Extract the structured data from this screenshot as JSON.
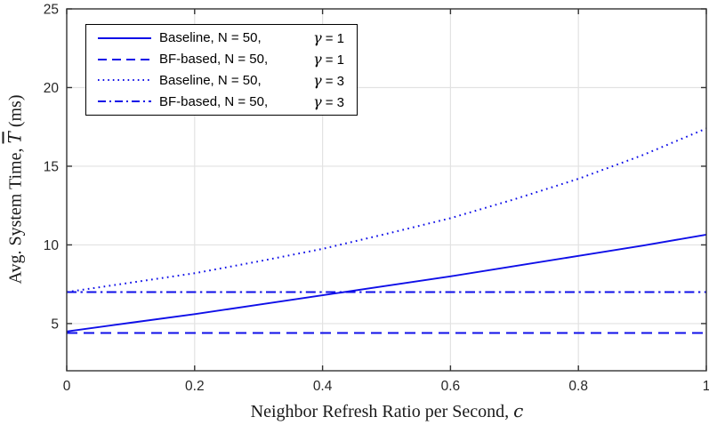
{
  "figure": {
    "background": "#ffffff"
  },
  "colors": {
    "line_blue": "#0f0fe8",
    "grid": "#e2e2e2",
    "axis": "#333333",
    "tick_label": "#262626",
    "legend_border": "#000000"
  },
  "axes": {
    "y_label_prefix": "Avg. System Time, ",
    "y_label_symbol": "T",
    "y_label_suffix": " (ms)",
    "x_label_prefix": "Neighbor Refresh Ratio per Second, ",
    "x_label_symbol": "c"
  },
  "legend": {
    "entries": [
      {
        "name": "Baseline, N = 50,",
        "gamma_symbol": "γ",
        "gamma_rest": "= 1",
        "line_style": "solid"
      },
      {
        "name": "BF-based, N = 50,",
        "gamma_symbol": "γ",
        "gamma_rest": "= 1",
        "line_style": "dashed"
      },
      {
        "name": "Baseline, N = 50,",
        "gamma_symbol": "γ",
        "gamma_rest": "= 3",
        "line_style": "dotted"
      },
      {
        "name": "BF-based, N = 50,",
        "gamma_symbol": "γ",
        "gamma_rest": "= 3",
        "line_style": "dashdot"
      }
    ]
  },
  "chart_data": {
    "type": "line",
    "title": "",
    "xlabel": "Neighbor Refresh Ratio per Second, c",
    "ylabel": "Avg. System Time, T̅ (ms)",
    "xlim": [
      0,
      1
    ],
    "ylim": [
      2,
      25
    ],
    "x_ticks": [
      0,
      0.2,
      0.4,
      0.6,
      0.8,
      1
    ],
    "x_tick_labels": [
      "0",
      "0.2",
      "0.4",
      "0.6",
      "0.8",
      "1"
    ],
    "y_ticks": [
      5,
      10,
      15,
      20,
      25
    ],
    "y_tick_labels": [
      "5",
      "10",
      "15",
      "20",
      "25"
    ],
    "grid": true,
    "legend_position": "top-left",
    "x": [
      0,
      0.1,
      0.2,
      0.3,
      0.4,
      0.5,
      0.6,
      0.7,
      0.8,
      0.9,
      1.0
    ],
    "series": [
      {
        "name": "Baseline, N = 50, γ = 1",
        "style": "solid",
        "color": "#0f0fe8",
        "values": [
          4.5,
          5.05,
          5.6,
          6.2,
          6.8,
          7.4,
          8.0,
          8.65,
          9.3,
          9.95,
          10.65
        ]
      },
      {
        "name": "BF-based, N = 50, γ = 1",
        "style": "dashed",
        "color": "#0f0fe8",
        "values": [
          4.4,
          4.4,
          4.4,
          4.4,
          4.4,
          4.4,
          4.4,
          4.4,
          4.4,
          4.4,
          4.4
        ]
      },
      {
        "name": "Baseline, N = 50, γ = 3",
        "style": "dotted",
        "color": "#0f0fe8",
        "values": [
          7.0,
          7.6,
          8.2,
          8.95,
          9.75,
          10.7,
          11.7,
          12.9,
          14.2,
          15.7,
          17.4
        ]
      },
      {
        "name": "BF-based, N = 50, γ = 3",
        "style": "dashdot",
        "color": "#0f0fe8",
        "values": [
          7.0,
          7.0,
          7.0,
          7.0,
          7.0,
          7.0,
          7.0,
          7.0,
          7.0,
          7.0,
          7.0
        ]
      }
    ]
  }
}
